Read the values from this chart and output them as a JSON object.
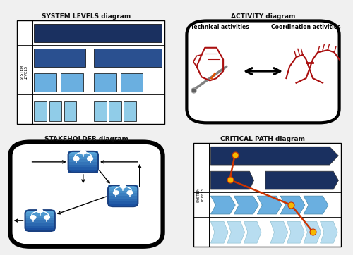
{
  "title": "",
  "bg_color": "#f0f0f0",
  "quadrant_titles": [
    "SYSTEM LEVELS diagram",
    "ACTIVITY diagram",
    "STAKEHOLDER diagram",
    "CRITICAL PATH diagram"
  ],
  "dark_blue": "#1a3060",
  "mid_blue": "#2a5090",
  "light_blue": "#6aafe0",
  "lighter_blue": "#90cce8",
  "lightest_blue": "#b8ddf0",
  "red_sketch": "#aa1010",
  "arrow_color": "#cc3300",
  "node_color": "#f5b800",
  "text_color": "#111111"
}
